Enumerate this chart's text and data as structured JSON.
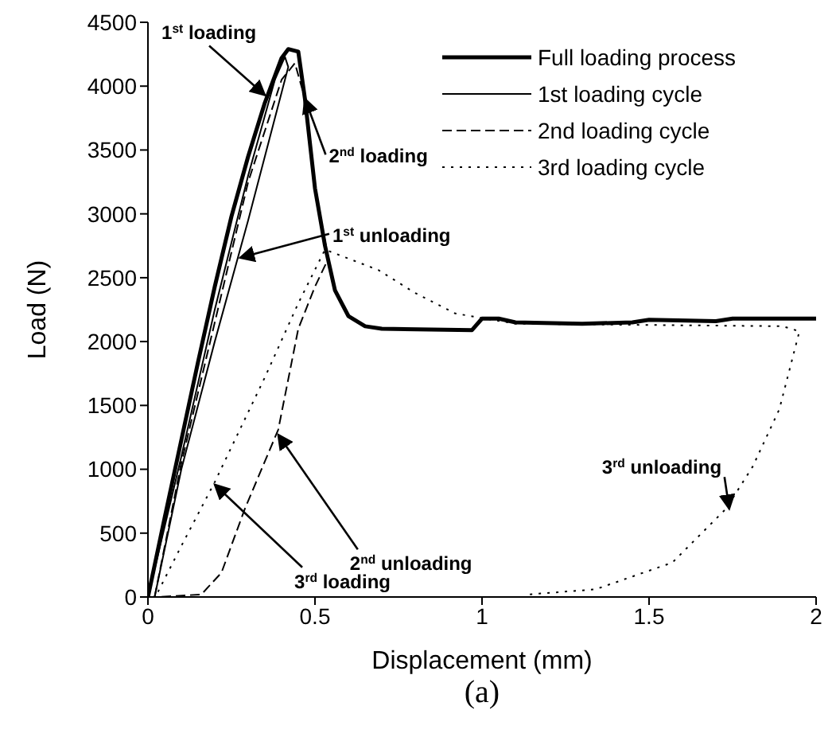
{
  "chart_data": {
    "type": "line",
    "xlabel": "Displacement (mm)",
    "ylabel": "Load (N)",
    "xlim": [
      0,
      2
    ],
    "xticks": [
      0,
      0.5,
      1,
      1.5,
      2
    ],
    "ylim": [
      0,
      4500
    ],
    "yticks": [
      0,
      500,
      1000,
      1500,
      2000,
      2500,
      3000,
      3500,
      4000,
      4500
    ],
    "legend": "top right",
    "marker": "none",
    "series": [
      {
        "name": "Full loading process",
        "color": "#000000",
        "line_style": "solid",
        "x": [
          0,
          0.05,
          0.1,
          0.15,
          0.2,
          0.25,
          0.3,
          0.35,
          0.4,
          0.42,
          0.45,
          0.47,
          0.5,
          0.53,
          0.56,
          0.6,
          0.65,
          0.7,
          0.97,
          1.0,
          1.05,
          1.1,
          1.3,
          1.45,
          1.5,
          1.7,
          1.75,
          2
        ],
        "values": [
          0,
          620,
          1230,
          1840,
          2430,
          2980,
          3450,
          3870,
          4220,
          4290,
          4270,
          3900,
          3200,
          2750,
          2400,
          2200,
          2120,
          2100,
          2090,
          2180,
          2180,
          2150,
          2140,
          2150,
          2170,
          2160,
          2180,
          2180
        ]
      },
      {
        "name": "1st loading cycle",
        "color": "#000000",
        "line_style": "solid",
        "x": [
          0,
          0.1,
          0.2,
          0.3,
          0.38,
          0.41,
          0.42,
          0.3,
          0.2,
          0.1,
          0.02
        ],
        "values": [
          0,
          1100,
          2250,
          3300,
          4050,
          4230,
          4150,
          2950,
          2000,
          1000,
          0
        ]
      },
      {
        "name": "2nd loading cycle",
        "color": "#000000",
        "line_style": "dashed",
        "x": [
          0.02,
          0.1,
          0.2,
          0.3,
          0.4,
          0.44,
          0.47,
          0.5,
          0.54,
          0.5,
          0.45,
          0.39,
          0.29,
          0.22,
          0.16,
          0.03
        ],
        "values": [
          0,
          1050,
          2150,
          3250,
          4050,
          4180,
          3900,
          3200,
          2650,
          2430,
          2100,
          1310,
          690,
          190,
          20,
          0
        ]
      },
      {
        "name": "3rd loading cycle",
        "color": "#000000",
        "line_style": "dotted",
        "x": [
          0.03,
          0.1,
          0.2,
          0.35,
          0.45,
          0.53,
          0.6,
          0.69,
          0.8,
          0.92,
          1.1,
          1.5,
          1.9,
          1.95,
          1.89,
          1.81,
          1.73,
          1.57,
          1.34,
          1.14
        ],
        "values": [
          40,
          400,
          900,
          1720,
          2300,
          2720,
          2650,
          2560,
          2380,
          2220,
          2140,
          2130,
          2120,
          2080,
          1470,
          1020,
          690,
          270,
          60,
          20
        ]
      }
    ],
    "annotations": [
      {
        "text": "1$^{st}$ loading",
        "x": 0.35,
        "y": 3930
      },
      {
        "text": "2$^{nd}$ loading",
        "x": 0.47,
        "y": 3900
      },
      {
        "text": "1$^{st}$ unloading",
        "x": 0.276,
        "y": 2656
      },
      {
        "text": "2$^{nd}$ unloading",
        "x": 0.39,
        "y": 1270
      },
      {
        "text": "3$^{rd}$ loading",
        "x": 0.2,
        "y": 880
      },
      {
        "text": "3$^{rd}$ unloading",
        "x": 1.74,
        "y": 690
      },
      "(a)"
    ]
  }
}
